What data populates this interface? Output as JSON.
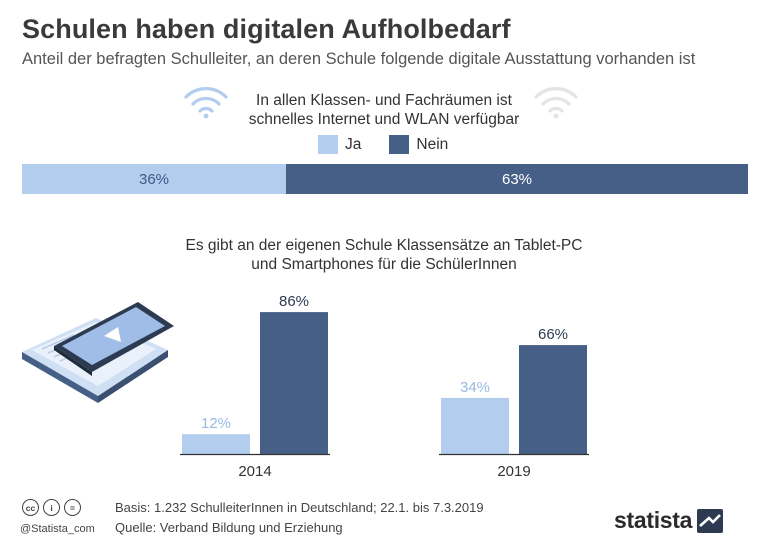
{
  "title": "Schulen haben digitalen Aufholbedarf",
  "subtitle": "Anteil der befragten Schulleiter, an deren Schule folgende digitale Ausstattung vorhanden ist",
  "legend": [
    {
      "label": "Ja",
      "color": "#b3cdef"
    },
    {
      "label": "Nein",
      "color": "#465f86"
    }
  ],
  "chart_data": [
    {
      "type": "bar",
      "orientation": "horizontal-stacked",
      "title": "In allen Klassen- und Fachräumen ist schnelles Internet und WLAN verfügbar",
      "title_lines": [
        "In allen Klassen- und Fachräumen ist",
        "schnelles Internet und WLAN verfügbar"
      ],
      "categories": [
        "Ja",
        "Nein"
      ],
      "values": [
        36,
        63
      ],
      "labels": [
        "36%",
        "63%"
      ],
      "colors": [
        "#b3cdef",
        "#465f86"
      ]
    },
    {
      "type": "bar",
      "title": "Es gibt an der eigenen Schule Klassensätze an Tablet-PC und Smartphones für die SchülerInnen",
      "title_lines": [
        "Es gibt an der eigenen Schule Klassensätze an Tablet-PC",
        "und Smartphones für die SchülerInnen"
      ],
      "categories": [
        "2014",
        "2019"
      ],
      "series": [
        {
          "name": "Ja",
          "values": [
            12,
            34
          ],
          "labels": [
            "12%",
            "34%"
          ],
          "color": "#b3cdef"
        },
        {
          "name": "Nein",
          "values": [
            86,
            66
          ],
          "labels": [
            "86%",
            "66%"
          ],
          "color": "#465f86"
        }
      ],
      "ylim": [
        0,
        100
      ]
    }
  ],
  "footer": {
    "basis": "Basis: 1.232 SchulleiterInnen in Deutschland; 22.1. bis 7.3.2019",
    "quelle": "Quelle: Verband Bildung und Erziehung",
    "handle": "@Statista_com",
    "license_icons": [
      "cc",
      "i",
      "="
    ],
    "logo": "statista"
  },
  "icons": [
    "wifi-icon",
    "wifi-icon",
    "tablet-smartphone-icon",
    "statista-logo-icon"
  ]
}
